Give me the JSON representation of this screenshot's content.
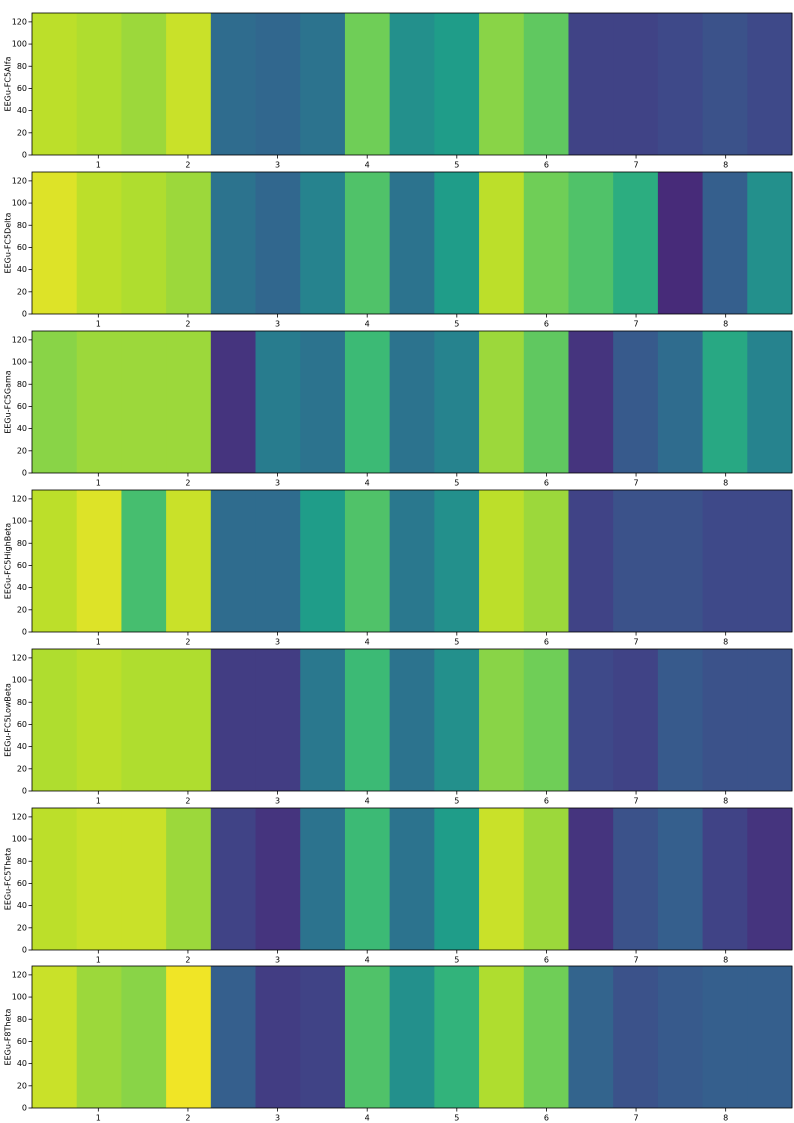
{
  "chart_data": [
    {
      "type": "heatmap",
      "ylabel": "EEGu-FC5Alfa",
      "colormap": "viridis",
      "values": [
        0.9,
        0.88,
        0.85,
        0.92,
        0.35,
        0.33,
        0.38,
        0.78,
        0.5,
        0.55,
        0.82,
        0.75,
        0.2,
        0.2,
        0.22,
        0.25,
        0.22
      ],
      "xlim": [
        0.26,
        8.74
      ],
      "ylim": [
        0,
        128
      ],
      "xticks": [
        1,
        2,
        3,
        4,
        5,
        6,
        7,
        8
      ],
      "yticks": [
        0,
        20,
        40,
        60,
        80,
        100,
        120
      ]
    },
    {
      "type": "heatmap",
      "ylabel": "EEGu-FC5Delta",
      "colormap": "viridis",
      "values": [
        0.95,
        0.9,
        0.88,
        0.85,
        0.38,
        0.33,
        0.45,
        0.72,
        0.38,
        0.55,
        0.9,
        0.78,
        0.72,
        0.62,
        0.12,
        0.3,
        0.5
      ],
      "xlim": [
        0.26,
        8.74
      ],
      "ylim": [
        0,
        128
      ],
      "xticks": [
        1,
        2,
        3,
        4,
        5,
        6,
        7,
        8
      ],
      "yticks": [
        0,
        20,
        40,
        60,
        80,
        100,
        120
      ]
    },
    {
      "type": "heatmap",
      "ylabel": "EEGu-FC5Gama",
      "colormap": "viridis",
      "values": [
        0.82,
        0.85,
        0.85,
        0.85,
        0.15,
        0.42,
        0.38,
        0.68,
        0.38,
        0.45,
        0.85,
        0.75,
        0.15,
        0.28,
        0.35,
        0.6,
        0.45
      ],
      "xlim": [
        0.26,
        8.74
      ],
      "ylim": [
        0,
        128
      ],
      "xticks": [
        1,
        2,
        3,
        4,
        5,
        6,
        7,
        8
      ],
      "yticks": [
        0,
        20,
        40,
        60,
        80,
        100,
        120
      ]
    },
    {
      "type": "heatmap",
      "ylabel": "EEGu-FC5HighBeta",
      "colormap": "viridis",
      "values": [
        0.9,
        0.95,
        0.7,
        0.92,
        0.35,
        0.35,
        0.55,
        0.72,
        0.4,
        0.5,
        0.9,
        0.85,
        0.2,
        0.25,
        0.25,
        0.22,
        0.22
      ],
      "xlim": [
        0.26,
        8.74
      ],
      "ylim": [
        0,
        128
      ],
      "xticks": [
        1,
        2,
        3,
        4,
        5,
        6,
        7,
        8
      ],
      "yticks": [
        0,
        20,
        40,
        60,
        80,
        100,
        120
      ]
    },
    {
      "type": "heatmap",
      "ylabel": "EEGu-FC5LowBeta",
      "colormap": "viridis",
      "values": [
        0.88,
        0.9,
        0.88,
        0.88,
        0.18,
        0.18,
        0.4,
        0.68,
        0.38,
        0.5,
        0.82,
        0.78,
        0.22,
        0.2,
        0.28,
        0.25,
        0.25
      ],
      "xlim": [
        0.26,
        8.74
      ],
      "ylim": [
        0,
        128
      ],
      "xticks": [
        1,
        2,
        3,
        4,
        5,
        6,
        7,
        8
      ],
      "yticks": [
        0,
        20,
        40,
        60,
        80,
        100,
        120
      ]
    },
    {
      "type": "heatmap",
      "ylabel": "EEGu-FC5Theta",
      "colormap": "viridis",
      "values": [
        0.9,
        0.92,
        0.92,
        0.85,
        0.2,
        0.15,
        0.38,
        0.68,
        0.38,
        0.55,
        0.92,
        0.85,
        0.15,
        0.25,
        0.3,
        0.2,
        0.15
      ],
      "xlim": [
        0.26,
        8.74
      ],
      "ylim": [
        0,
        128
      ],
      "xticks": [
        1,
        2,
        3,
        4,
        5,
        6,
        7,
        8
      ],
      "yticks": [
        0,
        20,
        40,
        60,
        80,
        100,
        120
      ]
    },
    {
      "type": "heatmap",
      "ylabel": "EEGu-F8Theta",
      "colormap": "viridis",
      "values": [
        0.92,
        0.85,
        0.82,
        0.98,
        0.3,
        0.18,
        0.2,
        0.72,
        0.5,
        0.65,
        0.88,
        0.78,
        0.32,
        0.25,
        0.28,
        0.3,
        0.3
      ],
      "xlim": [
        0.26,
        8.74
      ],
      "ylim": [
        0,
        128
      ],
      "xticks": [
        1,
        2,
        3,
        4,
        5,
        6,
        7,
        8
      ],
      "yticks": [
        0,
        20,
        40,
        60,
        80,
        100,
        120
      ]
    }
  ]
}
